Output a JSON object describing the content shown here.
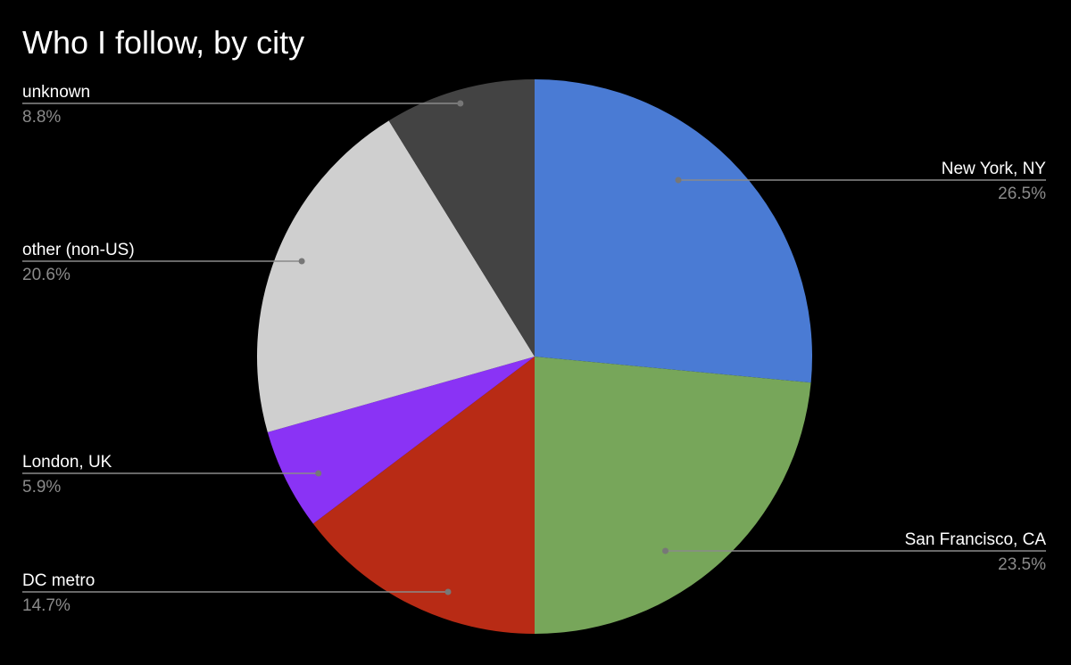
{
  "chart_data": {
    "type": "pie",
    "title": "Who I follow, by city",
    "categories": [
      "New York, NY",
      "San Francisco, CA",
      "DC metro",
      "London, UK",
      "other (non-US)",
      "unknown"
    ],
    "values": [
      26.5,
      23.5,
      14.7,
      5.9,
      20.6,
      8.8
    ],
    "value_labels": [
      "26.5%",
      "23.5%",
      "14.7%",
      "5.9%",
      "20.6%",
      "8.8%"
    ],
    "colors": [
      "#4a7bd4",
      "#77a65a",
      "#b82b15",
      "#8a33f5",
      "#cfcfcf",
      "#434343"
    ],
    "start": "12 o'clock",
    "direction": "clockwise",
    "legend": "none",
    "label_style": "leader lines with name and percentage"
  }
}
